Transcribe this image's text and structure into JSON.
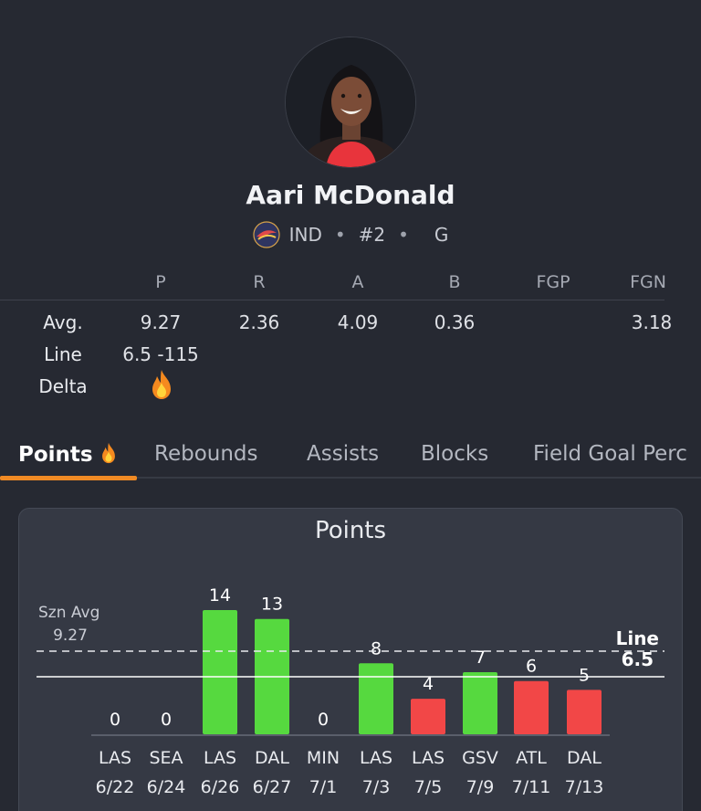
{
  "player": {
    "name": "Aari McDonald",
    "team": "IND",
    "number": "#2",
    "position": "G",
    "separator": "•"
  },
  "stats_table": {
    "columns": [
      "P",
      "R",
      "A",
      "B",
      "FGP",
      "FGN"
    ],
    "rows": [
      {
        "label": "Avg.",
        "values": [
          "9.27",
          "2.36",
          "4.09",
          "0.36",
          "",
          "3.18"
        ]
      },
      {
        "label": "Line",
        "values": [
          "6.5 -115"
        ]
      },
      {
        "label": "Delta",
        "values": [
          "fire-icon"
        ]
      }
    ]
  },
  "tabs": [
    {
      "label": "Points",
      "active": true,
      "icon": "fire-icon"
    },
    {
      "label": "Rebounds",
      "active": false
    },
    {
      "label": "Assists",
      "active": false
    },
    {
      "label": "Blocks",
      "active": false
    },
    {
      "label": "Field Goal Perc",
      "active": false
    }
  ],
  "colors": {
    "over": "#56d93f",
    "under": "#f24747",
    "accent": "#f08a24",
    "background": "#262932",
    "card": "#353944"
  },
  "chart_data": {
    "type": "bar",
    "title": "Points",
    "categories": [
      "LAS 6/22",
      "SEA 6/24",
      "LAS 6/26",
      "DAL 6/27",
      "MIN 7/1",
      "LAS 7/3",
      "LAS 7/5",
      "GSV 7/9",
      "ATL 7/11",
      "DAL 7/13"
    ],
    "opponents": [
      "LAS",
      "SEA",
      "LAS",
      "DAL",
      "MIN",
      "LAS",
      "LAS",
      "GSV",
      "ATL",
      "DAL"
    ],
    "dates": [
      "6/22",
      "6/24",
      "6/26",
      "6/27",
      "7/1",
      "7/3",
      "7/5",
      "7/9",
      "7/11",
      "7/13"
    ],
    "values": [
      0,
      0,
      14,
      13,
      0,
      8,
      4,
      7,
      6,
      5
    ],
    "season_avg": {
      "label": "Szn Avg",
      "value": 9.27
    },
    "line": {
      "label": "Line",
      "value": 6.5
    },
    "ylim": [
      0,
      14
    ]
  }
}
